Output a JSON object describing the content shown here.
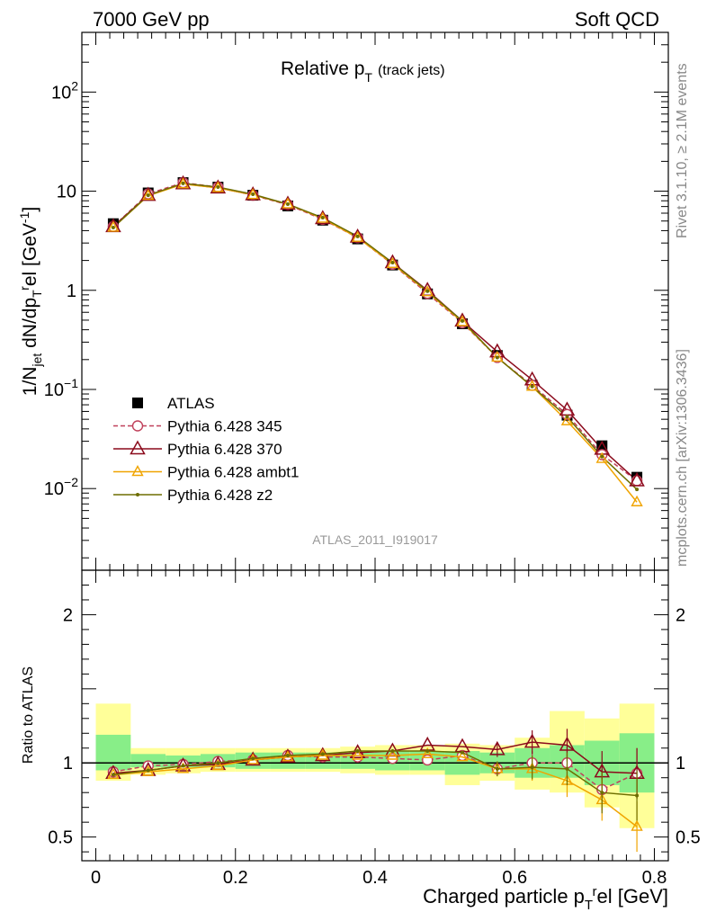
{
  "header": {
    "left": "7000 GeV pp",
    "right": "Soft QCD"
  },
  "side": {
    "rivet": "Rivet 3.1.10, ≥ 2.1M events",
    "mcplots": "mcplots.cern.ch [arXiv:1306.3436]"
  },
  "chart_data": [
    {
      "type": "line",
      "title_main": "Relative p",
      "title_sub": "T",
      "title_extra": "(track jets)",
      "analysis_label": "ATLAS_2011_I919017",
      "ylabel": "1/N_jet dN/dp_T^rel [GeV^-1]",
      "yscale": "log",
      "ylim": [
        0.0015,
        400
      ],
      "xlim": [
        -0.02,
        0.82
      ],
      "x": [
        0.025,
        0.075,
        0.125,
        0.175,
        0.225,
        0.275,
        0.325,
        0.375,
        0.425,
        0.475,
        0.525,
        0.575,
        0.625,
        0.675,
        0.725,
        0.775
      ],
      "series": [
        {
          "name": "ATLAS",
          "color": "#000000",
          "style": "square",
          "values": [
            4.7,
            9.6,
            12.2,
            11.0,
            9.1,
            7.1,
            5.1,
            3.3,
            1.8,
            0.92,
            0.46,
            0.22,
            0.11,
            0.055,
            0.027,
            0.013
          ]
        },
        {
          "name": "Pythia 6.428 345",
          "color": "#c0405a",
          "style": "circle-dashed",
          "values": [
            4.4,
            9.4,
            12.2,
            11.0,
            9.1,
            7.3,
            5.2,
            3.4,
            1.83,
            0.93,
            0.47,
            0.21,
            0.11,
            0.056,
            0.022,
            0.012
          ]
        },
        {
          "name": "Pythia 6.428 370",
          "color": "#8b0a1c",
          "style": "triangle-solid",
          "values": [
            4.4,
            9.1,
            11.9,
            10.8,
            9.2,
            7.4,
            5.3,
            3.45,
            1.9,
            1.0,
            0.49,
            0.24,
            0.125,
            0.062,
            0.025,
            0.012
          ]
        },
        {
          "name": "Pythia 6.428 ambt1",
          "color": "#f0a400",
          "style": "small-triangle",
          "values": [
            4.3,
            9.0,
            11.8,
            10.8,
            9.2,
            7.4,
            5.3,
            3.4,
            1.85,
            0.96,
            0.48,
            0.21,
            0.107,
            0.048,
            0.02,
            0.0073
          ]
        },
        {
          "name": "Pythia 6.428 z2",
          "color": "#6e6e00",
          "style": "dot",
          "values": [
            4.3,
            9.1,
            12.0,
            11.0,
            9.3,
            7.4,
            5.4,
            3.5,
            1.9,
            0.98,
            0.49,
            0.21,
            0.107,
            0.053,
            0.021,
            0.0098
          ]
        }
      ]
    },
    {
      "type": "line",
      "ylabel": "Ratio to ATLAS",
      "xlabel": "Charged particle p_T^rel [GeV]",
      "ylim": [
        0.34,
        2.3
      ],
      "xlim": [
        -0.02,
        0.82
      ],
      "xticks": [
        "0",
        "0.2",
        "0.4",
        "0.6",
        "0.8"
      ],
      "yticks": [
        "0.5",
        "1",
        "2"
      ],
      "x": [
        0.025,
        0.075,
        0.125,
        0.175,
        0.225,
        0.275,
        0.325,
        0.375,
        0.425,
        0.475,
        0.525,
        0.575,
        0.625,
        0.675,
        0.725,
        0.775
      ],
      "band_inner": [
        [
          0.95,
          1.19
        ],
        [
          0.97,
          1.06
        ],
        [
          0.97,
          1.05
        ],
        [
          0.97,
          1.06
        ],
        [
          0.96,
          1.07
        ],
        [
          0.96,
          1.07
        ],
        [
          0.96,
          1.07
        ],
        [
          0.96,
          1.07
        ],
        [
          0.95,
          1.08
        ],
        [
          0.95,
          1.08
        ],
        [
          0.92,
          1.08
        ],
        [
          0.93,
          1.07
        ],
        [
          0.9,
          1.1
        ],
        [
          0.9,
          1.12
        ],
        [
          0.85,
          1.15
        ],
        [
          0.8,
          1.2
        ]
      ],
      "band_outer": [
        [
          0.88,
          1.4
        ],
        [
          0.92,
          1.1
        ],
        [
          0.93,
          1.1
        ],
        [
          0.94,
          1.1
        ],
        [
          0.94,
          1.1
        ],
        [
          0.94,
          1.1
        ],
        [
          0.94,
          1.1
        ],
        [
          0.93,
          1.11
        ],
        [
          0.92,
          1.12
        ],
        [
          0.92,
          1.12
        ],
        [
          0.85,
          1.13
        ],
        [
          0.88,
          1.12
        ],
        [
          0.82,
          1.17
        ],
        [
          0.8,
          1.35
        ],
        [
          0.7,
          1.3
        ],
        [
          0.56,
          1.4
        ]
      ],
      "series": [
        {
          "name": "Pythia 6.428 345",
          "values": [
            0.94,
            0.98,
            0.99,
            1.01,
            1.02,
            1.05,
            1.04,
            1.04,
            1.03,
            1.02,
            1.05,
            0.96,
            1.0,
            1.0,
            0.82,
            0.93
          ]
        },
        {
          "name": "Pythia 6.428 370",
          "values": [
            0.93,
            0.95,
            0.98,
            0.99,
            1.02,
            1.04,
            1.05,
            1.07,
            1.08,
            1.12,
            1.11,
            1.09,
            1.14,
            1.12,
            0.94,
            0.93
          ]
        },
        {
          "name": "Pythia 6.428 ambt1",
          "values": [
            0.92,
            0.94,
            0.96,
            0.98,
            1.02,
            1.04,
            1.05,
            1.05,
            1.05,
            1.06,
            1.04,
            0.96,
            0.96,
            0.88,
            0.75,
            0.57
          ]
        },
        {
          "name": "Pythia 6.428 z2",
          "values": [
            0.92,
            0.95,
            0.98,
            1.0,
            1.03,
            1.05,
            1.06,
            1.08,
            1.08,
            1.08,
            1.07,
            0.96,
            0.97,
            0.96,
            0.8,
            0.78
          ]
        }
      ]
    }
  ]
}
